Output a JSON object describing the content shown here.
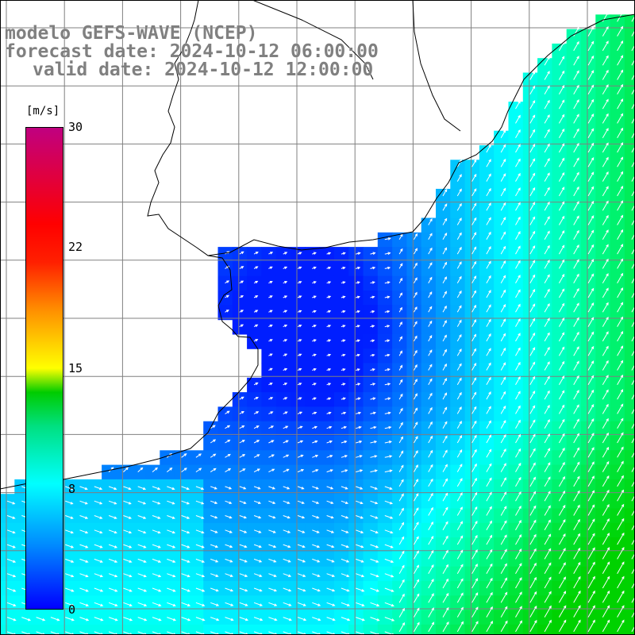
{
  "header": {
    "line1": "modelo GEFS-WAVE (NCEP)",
    "line2": "forecast date: 2024-10-12 06:00:00",
    "line3": "valid date: 2024-10-12 12:00:00"
  },
  "colorbar": {
    "unit": "[m/s]",
    "ticks": [
      {
        "label": "30",
        "value": 30
      },
      {
        "label": "22",
        "value": 22
      },
      {
        "label": "15",
        "value": 15
      },
      {
        "label": "8",
        "value": 8
      },
      {
        "label": "0",
        "value": 0
      }
    ],
    "colors": [
      "#0000ff",
      "#0088ff",
      "#00ffff",
      "#00e080",
      "#00cc00",
      "#ffff00",
      "#ff9000",
      "#ff0000",
      "#c00080"
    ]
  },
  "map": {
    "field": "wind speed",
    "coastline_color": "#000000",
    "gridline_color": "#808080",
    "vector_color": "#ffffff",
    "land_color": "#ffffff"
  }
}
